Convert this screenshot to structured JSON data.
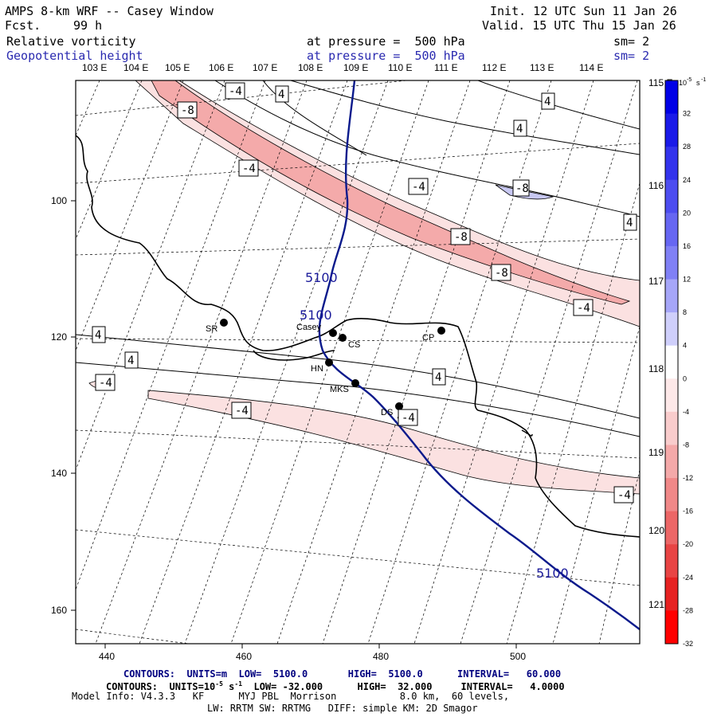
{
  "header": {
    "title": "AMPS 8-km WRF -- Casey Window",
    "fcst_label": "Fcst.",
    "fcst_value": "99 h",
    "init": "Init. 12 UTC Sun 11 Jan 26",
    "valid": "Valid. 15 UTC Thu 15 Jan 26",
    "field1": "Relative vorticity",
    "field1_level": "at pressure =  500 hPa",
    "field1_sm": "sm= 2",
    "field2": "Geopotential height",
    "field2_level": "at pressure =  500 hPa",
    "field2_sm": "sm= 2"
  },
  "longitude_labels_top": [
    "103 E",
    "104 E",
    "105 E",
    "106 E",
    "107 E",
    "108 E",
    "109 E",
    "110 E",
    "111 E",
    "112 E",
    "113 E",
    "114 E"
  ],
  "longitude_labels_right": [
    "115 E",
    "116 E",
    "117 E",
    "118 E",
    "119 E",
    "120 E",
    "121 E"
  ],
  "x_axis_ticks": [
    "440",
    "460",
    "480",
    "500"
  ],
  "y_axis_ticks": [
    "100",
    "120",
    "140",
    "160"
  ],
  "stations": [
    {
      "id": "SR",
      "label": "SR"
    },
    {
      "id": "Casey",
      "label": "Casey"
    },
    {
      "id": "CS",
      "label": "CS"
    },
    {
      "id": "CP",
      "label": "CP"
    },
    {
      "id": "HN",
      "label": "HN"
    },
    {
      "id": "MKS",
      "label": "MKS"
    },
    {
      "id": "DS",
      "label": "DS"
    }
  ],
  "contour_labels": {
    "height": [
      "5100",
      "5100",
      "5100"
    ],
    "vorticity": [
      "-8",
      "-4",
      "4",
      "-4",
      "4",
      "-4",
      "-8",
      "4",
      "-8",
      "-8",
      "-4",
      "4",
      "4",
      "-4",
      "4",
      "-4",
      "-4",
      "4",
      "-4"
    ]
  },
  "colorbar": {
    "unit": "10",
    "unit_exp": "-5",
    "unit_suffix": "s",
    "unit_suffix_exp": "-1",
    "ticks": [
      "32",
      "28",
      "24",
      "20",
      "16",
      "12",
      "8",
      "4",
      "0",
      "-4",
      "-8",
      "-12",
      "-16",
      "-20",
      "-24",
      "-28",
      "-32"
    ],
    "colors": [
      "#0000e6",
      "#1a1ae8",
      "#3333ec",
      "#4d4df0",
      "#6666f2",
      "#8080f5",
      "#a6a6f8",
      "#cfcffb",
      "#ffffff",
      "#fde8e8",
      "#f9cccc",
      "#f4a9a9",
      "#f08888",
      "#ec6666",
      "#e84444",
      "#e62222",
      "#ff0000"
    ]
  },
  "footer": {
    "line1": "CONTOURS:  UNITS=m  LOW=  5100.0       HIGH=  5100.0      INTERVAL=   60.000",
    "line2_a": "CONTOURS:  UNITS=10",
    "line2_exp1": "-5",
    "line2_b": " s",
    "line2_exp2": "-1",
    "line2_c": "  LOW= -32.000      HIGH=  32.000     INTERVAL=   4.0000",
    "line3": "Model Info: V4.3.3   KF      MYJ PBL  Morrison           8.0 km,  60 levels,",
    "line4": "LW: RRTM SW: RRTMG   DIFF: simple KM: 2D Smagor"
  }
}
